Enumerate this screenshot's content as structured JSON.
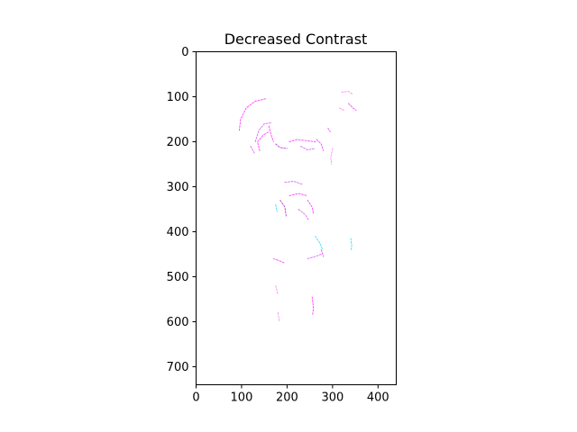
{
  "figure": {
    "title": "Decreased Contrast",
    "image_width": 440,
    "image_height": 740,
    "x_ticks": [
      0,
      100,
      200,
      300,
      400
    ],
    "y_ticks": [
      0,
      100,
      200,
      300,
      400,
      500,
      600,
      700
    ],
    "x_range": [
      0,
      440
    ],
    "y_range": [
      0,
      740
    ],
    "y_axis_inverted": true,
    "background_color": "#ffffff",
    "stroke_colors": [
      "#ff00ff",
      "#cc33ff",
      "#9900cc",
      "#00ccff",
      "#ff66ff"
    ]
  }
}
